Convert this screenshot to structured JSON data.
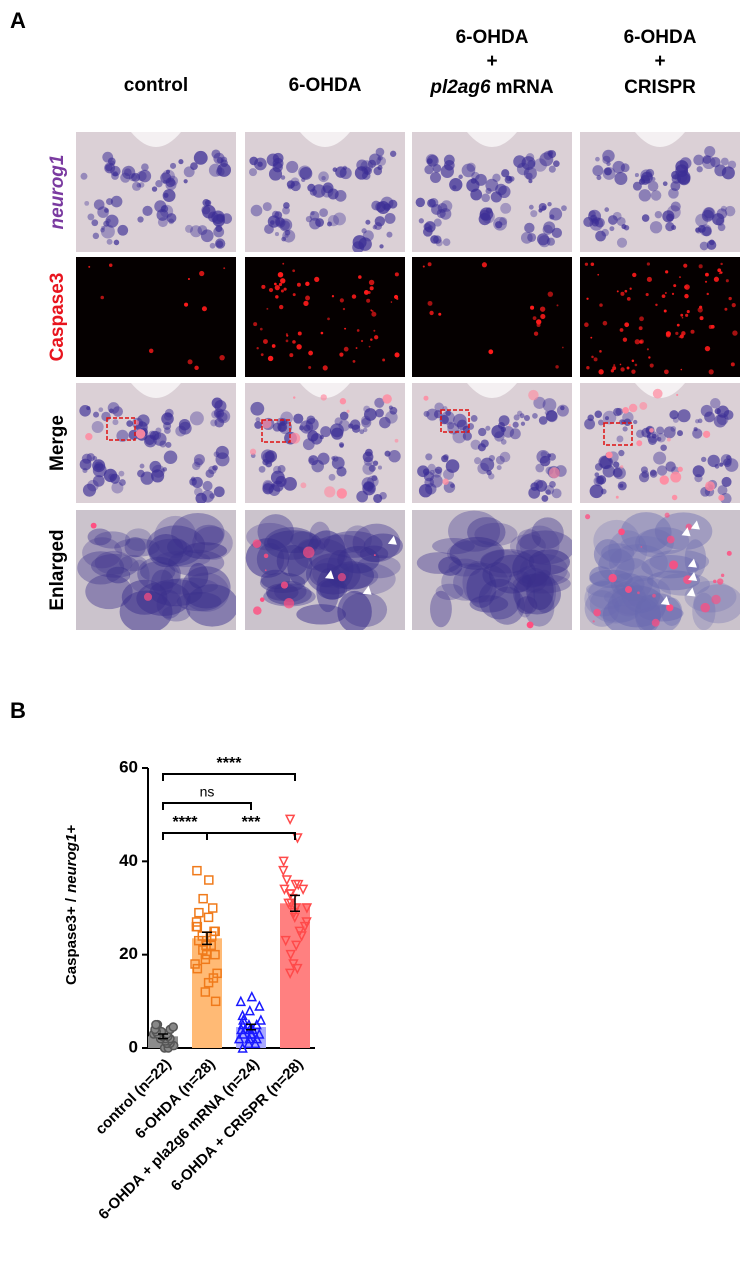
{
  "panel_a": {
    "label": "A",
    "columns": [
      {
        "lines": [
          "control"
        ]
      },
      {
        "lines": [
          "6-OHDA"
        ]
      },
      {
        "lines": [
          "6-OHDA",
          "+"
        ],
        "italic": "pl2ag6",
        "rest": "mRNA"
      },
      {
        "lines": [
          "6-OHDA",
          "+",
          "CRISPR"
        ]
      }
    ],
    "rows": [
      "neurog1",
      "Caspase3",
      "Merge",
      "Enlarged"
    ]
  },
  "chart_data": {
    "type": "bar",
    "label": "B",
    "ylabel": [
      "Caspase3+ /",
      "neurog1+"
    ],
    "categories": [
      "control (n=22)",
      "6-OHDA (n=28)",
      "6-OHDA + pla2g6 mRNA (n=24)",
      "6-OHDA + CRISPR  (n=28)"
    ],
    "values": [
      2.5,
      23.5,
      4.5,
      31
    ],
    "errors": [
      0.5,
      1.3,
      0.6,
      1.7
    ],
    "bar_colors": [
      "#8c8c8c",
      "#ffba75",
      "#a9a9ff",
      "#ff8080"
    ],
    "point_colors": [
      "#555555",
      "#f07a1a",
      "#1a1aff",
      "#ff4a4a"
    ],
    "points": [
      [
        0,
        0,
        0.5,
        1,
        1,
        1.5,
        1.5,
        2,
        2,
        2,
        2.5,
        2.5,
        3,
        3,
        3,
        3.5,
        3.5,
        4,
        4,
        4.5,
        5,
        5
      ],
      [
        10,
        12,
        14,
        15,
        16,
        17,
        18,
        19,
        20,
        20,
        21,
        22,
        22,
        23,
        23,
        24,
        24,
        25,
        25,
        26,
        26,
        27,
        28,
        29,
        30,
        32,
        36,
        38
      ],
      [
        0,
        1,
        1,
        2,
        2,
        2,
        3,
        3,
        3,
        3,
        4,
        4,
        4,
        4,
        5,
        5,
        5,
        6,
        6,
        7,
        8,
        9,
        10,
        11
      ],
      [
        16,
        17,
        18,
        20,
        22,
        23,
        24,
        25,
        26,
        27,
        28,
        29,
        30,
        30,
        31,
        31,
        32,
        33,
        33,
        34,
        34,
        35,
        35,
        36,
        38,
        40,
        45,
        49
      ]
    ],
    "comparisons": [
      {
        "groups": [
          0,
          3
        ],
        "label": "****"
      },
      {
        "groups": [
          0,
          2
        ],
        "label": "ns"
      },
      {
        "groups": [
          0,
          1
        ],
        "label": "****"
      },
      {
        "groups": [
          1,
          3
        ],
        "label": "***"
      }
    ],
    "ylim": [
      0,
      60
    ],
    "yticks": [
      0,
      20,
      40,
      60
    ]
  }
}
